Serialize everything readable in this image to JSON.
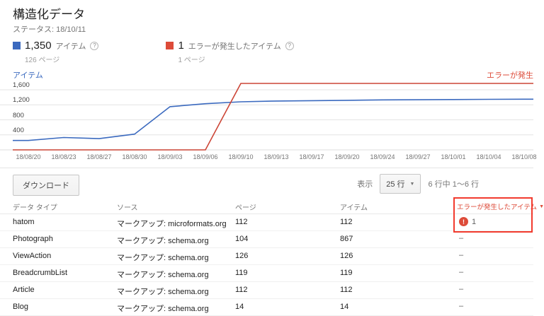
{
  "page": {
    "title": "構造化データ",
    "status": "ステータス: 18/10/11"
  },
  "legend": {
    "items_count": "1,350",
    "items_label": "アイテム",
    "items_pages": "126 ページ",
    "errors_count": "1",
    "errors_label": "エラーが発生したアイテム",
    "errors_pages": "1 ページ"
  },
  "chart_data": {
    "type": "line",
    "categories": [
      "18/08/20",
      "18/08/23",
      "18/08/27",
      "18/08/30",
      "18/09/03",
      "18/09/06",
      "18/09/10",
      "18/09/13",
      "18/09/17",
      "18/09/20",
      "18/09/24",
      "18/09/27",
      "18/10/01",
      "18/10/04",
      "18/10/08"
    ],
    "series": [
      {
        "name": "アイテム",
        "axis": "left",
        "color": "#3b6abf",
        "values": [
          250,
          330,
          300,
          420,
          1150,
          1230,
          1280,
          1300,
          1310,
          1320,
          1330,
          1335,
          1340,
          1345,
          1350
        ]
      },
      {
        "name": "エラーが発生したアイテム",
        "axis": "right",
        "color": "#cc4536",
        "values": [
          0,
          0,
          0,
          0,
          0,
          0,
          1,
          1,
          1,
          1,
          1,
          1,
          1,
          1,
          1
        ]
      }
    ],
    "left_axis": {
      "label": "アイテム",
      "tick_labels": [
        "400",
        "800",
        "1,200",
        "1,600"
      ],
      "tick_values": [
        400,
        800,
        1200,
        1600
      ],
      "range": [
        0,
        1800
      ]
    },
    "right_axis": {
      "label": "エラーが発生",
      "max": 1
    },
    "grid": true,
    "legend_position": "top"
  },
  "toolbar": {
    "download_label": "ダウンロード",
    "rows_label": "表示",
    "rows_per_page": "25 行",
    "pagination": "6 行中 1〜6 行"
  },
  "table": {
    "headers": [
      "データ タイプ",
      "ソース",
      "ページ",
      "アイテム",
      "エラーが発生したアイテム"
    ],
    "rows": [
      {
        "type": "hatom",
        "source": "マークアップ: microformats.org",
        "pages": "112",
        "items": "112",
        "errors": "1"
      },
      {
        "type": "Photograph",
        "source": "マークアップ: schema.org",
        "pages": "104",
        "items": "867",
        "errors": "–"
      },
      {
        "type": "ViewAction",
        "source": "マークアップ: schema.org",
        "pages": "126",
        "items": "126",
        "errors": "–"
      },
      {
        "type": "BreadcrumbList",
        "source": "マークアップ: schema.org",
        "pages": "119",
        "items": "119",
        "errors": "–"
      },
      {
        "type": "Article",
        "source": "マークアップ: schema.org",
        "pages": "112",
        "items": "112",
        "errors": "–"
      },
      {
        "type": "Blog",
        "source": "マークアップ: schema.org",
        "pages": "14",
        "items": "14",
        "errors": "–"
      }
    ]
  },
  "colors": {
    "items_blue": "#3b6abf",
    "error_red": "#dd4b39",
    "annotation_red": "#f23b2e",
    "grid_gray": "#e4e4e4"
  }
}
